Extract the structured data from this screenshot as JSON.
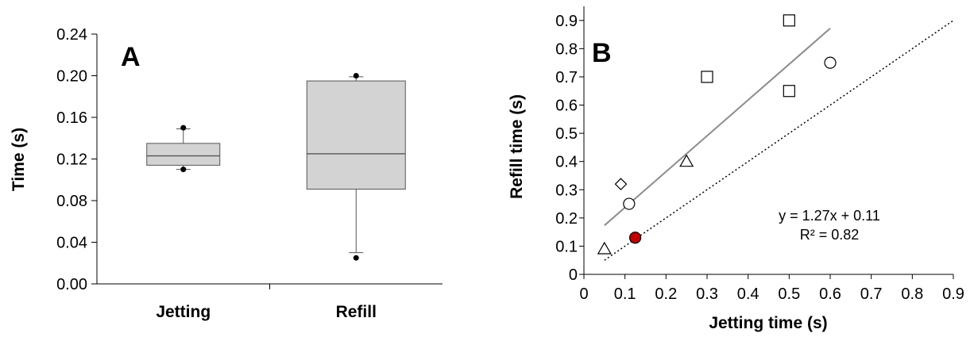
{
  "chart_data": [
    {
      "type": "box",
      "panel": "A",
      "ylabel": "Time (s)",
      "xlabel": "",
      "ylim": [
        0,
        0.24
      ],
      "yticks": [
        "0.00",
        "0.04",
        "0.08",
        "0.12",
        "0.16",
        "0.20",
        "0.24"
      ],
      "grid": false,
      "categories": [
        "Jetting",
        "Refill"
      ],
      "boxes": [
        {
          "category": "Jetting",
          "whisker_low": 0.11,
          "q1": 0.114,
          "median": 0.123,
          "q3": 0.135,
          "whisker_high": 0.149,
          "outliers": [
            0.11,
            0.15
          ]
        },
        {
          "category": "Refill",
          "whisker_low": 0.03,
          "q1": 0.091,
          "median": 0.125,
          "q3": 0.195,
          "whisker_high": 0.199,
          "outliers": [
            0.025,
            0.2
          ]
        }
      ],
      "colors": {
        "box_fill": "#d3d3d3",
        "box_stroke": "#555555"
      }
    },
    {
      "type": "scatter",
      "panel": "B",
      "xlabel": "Jetting time (s)",
      "ylabel": "Refill time (s)",
      "xlim": [
        0,
        0.9
      ],
      "ylim": [
        0,
        0.95
      ],
      "xticks": [
        "0",
        "0.1",
        "0.2",
        "0.3",
        "0.4",
        "0.5",
        "0.6",
        "0.7",
        "0.8",
        "0.9"
      ],
      "yticks": [
        "0",
        "0.1",
        "0.2",
        "0.3",
        "0.4",
        "0.5",
        "0.6",
        "0.7",
        "0.8",
        "0.9"
      ],
      "grid": false,
      "points": [
        {
          "x": 0.05,
          "y": 0.09,
          "marker": "triangle",
          "fill": "#ffffff"
        },
        {
          "x": 0.25,
          "y": 0.4,
          "marker": "triangle",
          "fill": "#ffffff"
        },
        {
          "x": 0.09,
          "y": 0.32,
          "marker": "diamond",
          "fill": "#ffffff"
        },
        {
          "x": 0.11,
          "y": 0.25,
          "marker": "circle",
          "fill": "#ffffff"
        },
        {
          "x": 0.6,
          "y": 0.75,
          "marker": "circle",
          "fill": "#ffffff"
        },
        {
          "x": 0.3,
          "y": 0.7,
          "marker": "square",
          "fill": "#ffffff"
        },
        {
          "x": 0.5,
          "y": 0.9,
          "marker": "square",
          "fill": "#ffffff"
        },
        {
          "x": 0.5,
          "y": 0.65,
          "marker": "square",
          "fill": "#ffffff"
        },
        {
          "x": 0.125,
          "y": 0.13,
          "marker": "circle",
          "fill": "#c00000"
        }
      ],
      "fit_line": {
        "slope": 1.27,
        "intercept": 0.11,
        "x_range": [
          0.05,
          0.6
        ],
        "color": "#8c8c8c"
      },
      "identity_line": {
        "x_range": [
          0.05,
          0.9
        ],
        "style": "dotted"
      },
      "annotations": [
        "y = 1.27x + 0.11",
        "R² = 0.82"
      ]
    }
  ]
}
